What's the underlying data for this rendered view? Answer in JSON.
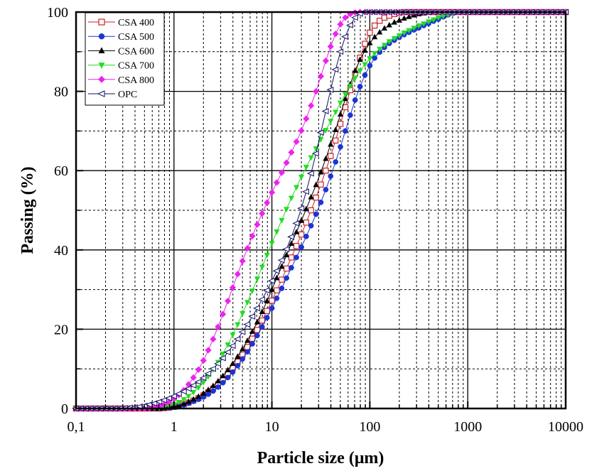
{
  "chart_data": {
    "type": "line",
    "title": "",
    "xlabel": "Particle size (μm)",
    "ylabel": "Passing (%)",
    "xscale": "log",
    "xlim": [
      0.1,
      10000
    ],
    "ylim": [
      0,
      100
    ],
    "grid": true,
    "legend_position": "top-left",
    "x_tick_labels": [
      "0,1",
      "1",
      "10",
      "100",
      "1000",
      "10000"
    ],
    "x_tick_values": [
      0.1,
      1,
      10,
      100,
      1000,
      10000
    ],
    "y_tick_labels": [
      "0",
      "20",
      "40",
      "60",
      "80",
      "100"
    ],
    "y_tick_values": [
      0,
      20,
      40,
      60,
      80,
      100
    ],
    "x": [
      0.1,
      0.112,
      0.126,
      0.141,
      0.158,
      0.178,
      0.2,
      0.224,
      0.251,
      0.282,
      0.316,
      0.355,
      0.398,
      0.447,
      0.501,
      0.562,
      0.631,
      0.708,
      0.794,
      0.891,
      1,
      1.12,
      1.26,
      1.41,
      1.58,
      1.78,
      2,
      2.24,
      2.51,
      2.82,
      3.16,
      3.55,
      3.98,
      4.47,
      5.01,
      5.62,
      6.31,
      7.08,
      7.94,
      8.91,
      10,
      11.2,
      12.6,
      14.1,
      15.8,
      17.8,
      20,
      22.4,
      25.1,
      28.2,
      31.6,
      35.5,
      39.8,
      44.7,
      50.1,
      56.2,
      63.1,
      70.8,
      79.4,
      89.1,
      100,
      112,
      126,
      141,
      158,
      178,
      200,
      224,
      251,
      282,
      316,
      355,
      398,
      447,
      501,
      562,
      631,
      708,
      794,
      891,
      1000,
      1120,
      1260,
      1410,
      1580,
      1780,
      2000,
      2240,
      2510,
      2820,
      3160,
      3550,
      3980,
      4470,
      5010,
      5620,
      6310,
      7080,
      7940,
      8910,
      10000
    ],
    "series": [
      {
        "name": "CSA 400",
        "color": "#cc2222",
        "marker": "open-square",
        "values": [
          0,
          0,
          0,
          0,
          0,
          0,
          0,
          0,
          0,
          0,
          0,
          0,
          0,
          0,
          0,
          0,
          0,
          0,
          0.1,
          0.2,
          0.4,
          0.7,
          1.1,
          1.5,
          2.0,
          2.6,
          3.3,
          4.1,
          5.0,
          6.1,
          7.3,
          8.7,
          10.2,
          11.8,
          13.6,
          15.5,
          17.6,
          19.8,
          22.2,
          24.6,
          27.2,
          29.8,
          32.5,
          35.3,
          38.1,
          41.0,
          43.9,
          46.9,
          50.0,
          53.2,
          56.5,
          60.0,
          63.7,
          67.6,
          71.8,
          76.0,
          80.3,
          84.5,
          88.5,
          92.0,
          94.8,
          96.6,
          97.8,
          98.6,
          99.1,
          99.5,
          99.8,
          100,
          100,
          100,
          100,
          100,
          100,
          100,
          100,
          100,
          100,
          100,
          100,
          100,
          100,
          100,
          100,
          100,
          100,
          100,
          100,
          100,
          100,
          100,
          100,
          100,
          100,
          100,
          100,
          100,
          100,
          100,
          100,
          100,
          100
        ]
      },
      {
        "name": "CSA 500",
        "color": "#1a35d6",
        "marker": "filled-circle",
        "values": [
          0,
          0,
          0,
          0,
          0,
          0,
          0,
          0,
          0,
          0,
          0,
          0,
          0,
          0,
          0,
          0,
          0,
          0,
          0.1,
          0.2,
          0.3,
          0.6,
          0.9,
          1.3,
          1.8,
          2.3,
          2.9,
          3.6,
          4.4,
          5.4,
          6.5,
          7.8,
          9.2,
          10.8,
          12.5,
          14.3,
          16.3,
          18.4,
          20.6,
          22.9,
          25.3,
          27.8,
          30.3,
          32.9,
          35.5,
          38.1,
          40.7,
          43.4,
          46.1,
          49.0,
          52.0,
          55.2,
          58.6,
          62.2,
          66.0,
          70.0,
          74.0,
          77.8,
          81.2,
          84.1,
          86.5,
          88.4,
          89.9,
          91.1,
          92.1,
          92.9,
          93.6,
          94.3,
          94.9,
          95.5,
          96.0,
          96.6,
          97.1,
          97.7,
          98.2,
          98.8,
          99.3,
          99.7,
          100,
          100,
          100,
          100,
          100,
          100,
          100,
          100,
          100,
          100,
          100,
          100,
          100,
          100,
          100,
          100,
          100,
          100,
          100,
          100,
          100,
          100,
          100
        ]
      },
      {
        "name": "CSA 600",
        "color": "#000000",
        "marker": "filled-triangle-up",
        "values": [
          0,
          0,
          0,
          0,
          0,
          0,
          0,
          0,
          0,
          0,
          0,
          0,
          0,
          0,
          0,
          0,
          0,
          0,
          0.1,
          0.3,
          0.5,
          0.8,
          1.2,
          1.7,
          2.3,
          3.0,
          3.8,
          4.7,
          5.7,
          6.9,
          8.2,
          9.7,
          11.3,
          13.1,
          15.0,
          17.1,
          19.4,
          21.8,
          24.4,
          27.1,
          30.0,
          32.9,
          35.8,
          38.7,
          41.6,
          44.5,
          47.4,
          50.3,
          53.3,
          56.4,
          59.6,
          63.0,
          66.6,
          70.3,
          74.2,
          78.1,
          81.8,
          85.2,
          88.0,
          90.3,
          92.2,
          93.7,
          94.9,
          95.9,
          96.7,
          97.4,
          97.9,
          98.4,
          98.8,
          99.2,
          99.5,
          99.7,
          99.9,
          100,
          100,
          100,
          100,
          100,
          100,
          100,
          100,
          100,
          100,
          100,
          100,
          100,
          100,
          100,
          100,
          100,
          100,
          100,
          100,
          100,
          100,
          100,
          100,
          100,
          100,
          100,
          100
        ]
      },
      {
        "name": "CSA 700",
        "color": "#22dd22",
        "marker": "filled-triangle-down",
        "values": [
          0,
          0,
          0,
          0,
          0,
          0,
          0,
          0,
          0,
          0,
          0,
          0,
          0,
          0,
          0,
          0,
          0.1,
          0.2,
          0.4,
          0.7,
          1.1,
          1.6,
          2.3,
          3.1,
          4.1,
          5.3,
          6.6,
          8.1,
          9.8,
          11.7,
          13.8,
          16.1,
          18.6,
          21.2,
          24.0,
          26.8,
          29.7,
          32.7,
          35.7,
          38.7,
          41.7,
          44.6,
          47.5,
          50.3,
          53.1,
          55.8,
          58.4,
          60.9,
          63.3,
          65.6,
          67.9,
          70.2,
          72.5,
          74.8,
          77.1,
          79.3,
          81.4,
          83.4,
          85.2,
          86.8,
          88.3,
          89.6,
          90.7,
          91.7,
          92.6,
          93.4,
          94.1,
          94.8,
          95.4,
          96.0,
          96.6,
          97.1,
          97.6,
          98.1,
          98.6,
          99.0,
          99.4,
          99.7,
          100,
          100,
          100,
          100,
          100,
          100,
          100,
          100,
          100,
          100,
          100,
          100,
          100,
          100,
          100,
          100,
          100,
          100,
          100,
          100,
          100,
          100,
          100
        ]
      },
      {
        "name": "CSA 800",
        "color": "#ee22ee",
        "marker": "filled-diamond",
        "values": [
          0,
          0,
          0,
          0,
          0,
          0,
          0,
          0,
          0,
          0,
          0,
          0,
          0,
          0,
          0,
          0.1,
          0.3,
          0.6,
          1.0,
          1.6,
          2.4,
          3.4,
          4.6,
          6.1,
          7.8,
          9.8,
          12.1,
          14.7,
          17.5,
          20.6,
          23.8,
          27.1,
          30.5,
          33.9,
          37.2,
          40.4,
          43.5,
          46.4,
          49.2,
          51.9,
          54.5,
          57.0,
          59.5,
          62.0,
          64.6,
          67.3,
          70.1,
          73.1,
          76.4,
          80.0,
          83.8,
          87.7,
          91.3,
          94.5,
          96.9,
          98.6,
          99.5,
          99.9,
          100,
          100,
          100,
          100,
          100,
          100,
          100,
          100,
          100,
          100,
          100,
          100,
          100,
          100,
          100,
          100,
          100,
          100,
          100,
          100,
          100,
          100,
          100,
          100,
          100,
          100,
          100,
          100,
          100,
          100,
          100,
          100,
          100,
          100,
          100,
          100,
          100,
          100,
          100,
          100,
          100,
          100,
          100
        ]
      },
      {
        "name": "OPC",
        "color": "#111166",
        "marker": "open-triangle-left",
        "values": [
          0,
          0,
          0,
          0,
          0,
          0,
          0,
          0,
          0,
          0.05,
          0.1,
          0.2,
          0.3,
          0.5,
          0.7,
          1.0,
          1.3,
          1.7,
          2.1,
          2.6,
          3.1,
          3.7,
          4.3,
          5.0,
          5.8,
          6.7,
          7.7,
          8.8,
          10.0,
          11.3,
          12.7,
          14.2,
          15.8,
          17.5,
          19.3,
          21.2,
          23.2,
          25.3,
          27.5,
          29.8,
          32.2,
          34.7,
          37.4,
          40.2,
          43.3,
          46.7,
          50.5,
          54.7,
          59.3,
          64.3,
          69.6,
          75.0,
          80.4,
          85.5,
          90.0,
          93.8,
          96.7,
          98.6,
          99.6,
          100,
          100,
          100,
          100,
          100,
          100,
          100,
          100,
          100,
          100,
          100,
          100,
          100,
          100,
          100,
          100,
          100,
          100,
          100,
          100,
          100,
          100,
          100,
          100,
          100,
          100,
          100,
          100,
          100,
          100,
          100,
          100,
          100,
          100,
          100,
          100,
          100,
          100,
          100,
          100,
          100,
          100
        ]
      }
    ]
  }
}
